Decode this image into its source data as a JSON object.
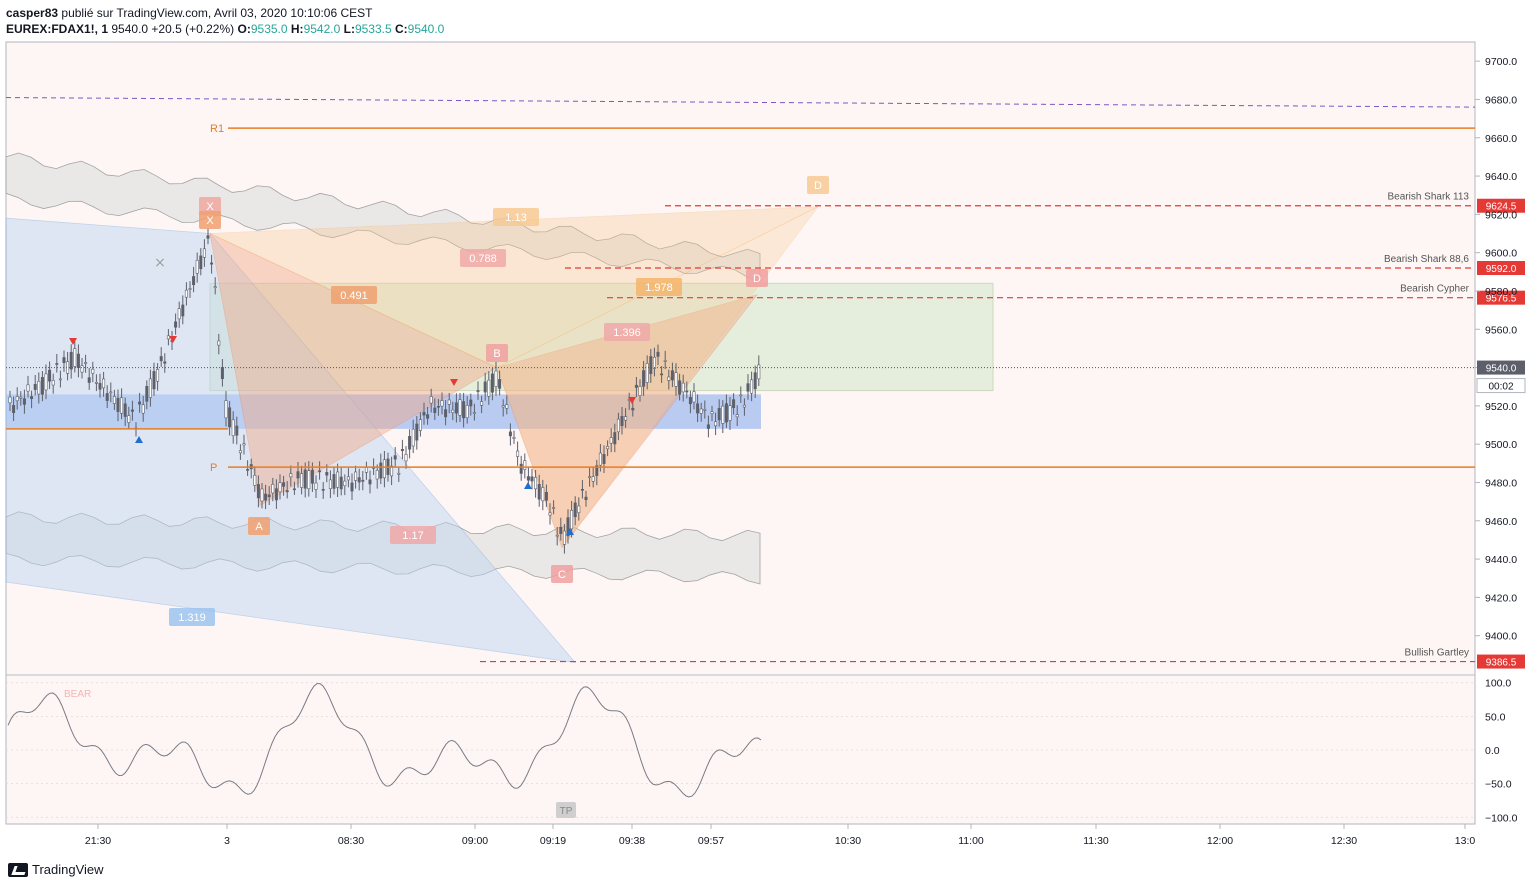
{
  "header": {
    "author": "casper83",
    "published_text": "publié sur TradingView.com, Avril 03, 2020 10:10:06 CEST",
    "symbol": "EUREX:FDAX1!, 1",
    "last": "9540.0",
    "change": "+20.5 (+0.22%)",
    "o_label": "O:",
    "o_value": "9535.0",
    "h_label": "H:",
    "h_value": "9542.0",
    "l_label": "L:",
    "l_value": "9533.5",
    "c_label": "C:",
    "c_value": "9540.0"
  },
  "footer": {
    "brand": "TradingView"
  },
  "colors": {
    "bg": "#fdf6f5",
    "candle": "#5d606b",
    "orange_line": "#e67e22",
    "red_dashed": "#e53935",
    "purple_dashed": "#7e57c2",
    "blue_zone": "#a8c1f0",
    "green_zone": "#dcebd3",
    "band": "#e9e6e6"
  },
  "chart_data": {
    "type": "candlestick",
    "symbol": "EUREX:FDAX1!",
    "interval": "1",
    "ylim": [
      9380,
      9710
    ],
    "y_ticks": [
      "9700.0",
      "9680.0",
      "9660.0",
      "9640.0",
      "9620.0",
      "9600.0",
      "9580.0",
      "9560.0",
      "9540.0",
      "9520.0",
      "9500.0",
      "9480.0",
      "9460.0",
      "9440.0",
      "9420.0",
      "9400.0"
    ],
    "x_ticks": [
      "21:30",
      "3",
      "08:30",
      "09:00",
      "09:19",
      "09:38",
      "09:57",
      "10:30",
      "11:00",
      "11:30",
      "12:00",
      "12:30",
      "13:0"
    ],
    "price_levels": [
      {
        "label": "Bearish Shark 113",
        "value": 9624.5,
        "badge": "9624.5"
      },
      {
        "label": "Bearish Shark 88,6",
        "value": 9592.0,
        "badge": "9592.0"
      },
      {
        "label": "Bearish Cypher",
        "value": 9576.5,
        "badge": "9576.5"
      },
      {
        "label": "Bullish Gartley",
        "value": 9386.5,
        "badge": "9386.5"
      }
    ],
    "current_price": {
      "value": 9540.0,
      "label": "9540.0",
      "countdown": "00:02"
    },
    "pivot_lines": [
      {
        "label": "R1",
        "value": 9665
      },
      {
        "label": "P",
        "value": 9488
      }
    ],
    "purple_line": {
      "from": 9681,
      "to": 9676
    },
    "pattern_labels": [
      "X",
      "X",
      "A",
      "B",
      "C",
      "D",
      "D"
    ],
    "ratio_labels": [
      "1.13",
      "0.788",
      "0.491",
      "1.978",
      "1.396",
      "1.17",
      "1.319"
    ],
    "oscillator": {
      "ylim": [
        -110,
        110
      ],
      "y_ticks": [
        "100.0",
        "50.0",
        "0.0",
        "−50.0",
        "−100.0"
      ],
      "labels": [
        "BEAR",
        "TP"
      ]
    }
  }
}
